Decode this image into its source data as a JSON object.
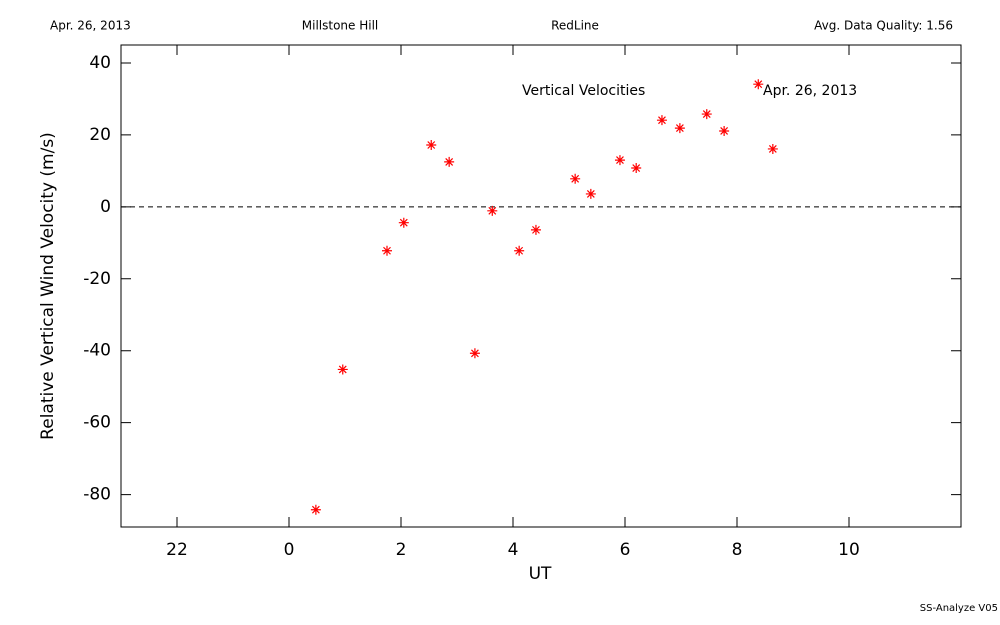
{
  "header": {
    "date": "Apr. 26, 2013",
    "site": "Millstone Hill",
    "instrument": "RedLine",
    "quality": "Avg. Data Quality: 1.56"
  },
  "footer": "SS-Analyze V05",
  "chart_data": {
    "type": "scatter",
    "annotations": [
      "Vertical Velocities",
      "Apr. 26, 2013"
    ],
    "x_label": "UT",
    "y_label": "Relative Vertical Wind Velocity (m/s)",
    "color": "#ff0000",
    "reference_line": 0,
    "x": [
      0.48,
      0.96,
      1.75,
      2.05,
      2.54,
      2.86,
      3.32,
      3.63,
      4.11,
      4.41,
      5.11,
      5.39,
      5.91,
      6.2,
      6.66,
      6.98,
      7.46,
      7.77,
      8.38,
      8.64
    ],
    "values": [
      -84.2,
      -45.2,
      -12.2,
      -4.4,
      17.2,
      12.5,
      -40.7,
      -1.1,
      -12.2,
      -6.4,
      7.8,
      3.6,
      13.0,
      10.8,
      24.1,
      21.9,
      25.8,
      21.1,
      34.1,
      16.1
    ],
    "xlim": [
      -3,
      12
    ],
    "ylim": [
      -89,
      45
    ],
    "xticks": [
      {
        "value": -2,
        "label": "22"
      },
      0,
      2,
      4,
      6,
      8,
      10
    ],
    "yticks": [
      40,
      20,
      0,
      -20,
      -40,
      -60,
      -80
    ]
  }
}
